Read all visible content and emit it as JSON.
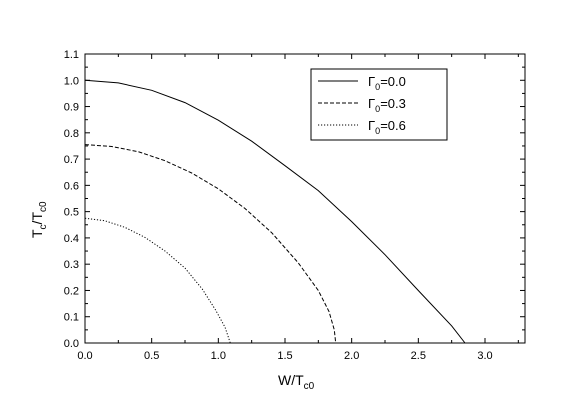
{
  "chart_data": {
    "type": "line",
    "xlabel": {
      "main": "W/T",
      "sub": "c0"
    },
    "ylabel": {
      "main": "T",
      "sub1": "c",
      "mid": "/T",
      "sub2": "c0"
    },
    "xlim": [
      0,
      3.3
    ],
    "ylim": [
      0,
      1.1
    ],
    "x_ticks": [
      "0.0",
      "0.5",
      "1.0",
      "1.5",
      "2.0",
      "2.5",
      "3.0"
    ],
    "y_ticks": [
      "0.0",
      "0.1",
      "0.2",
      "0.3",
      "0.4",
      "0.5",
      "0.6",
      "0.7",
      "0.8",
      "0.9",
      "1.0",
      "1.1"
    ],
    "grid": false,
    "legend_position": "top-right",
    "series": [
      {
        "name": {
          "symbol": "Γ",
          "sub": "0",
          "value": "=0.0"
        },
        "style": "solid",
        "points": [
          [
            0,
            1.0
          ],
          [
            0.25,
            0.99
          ],
          [
            0.5,
            0.962
          ],
          [
            0.75,
            0.915
          ],
          [
            1.0,
            0.848
          ],
          [
            1.25,
            0.768
          ],
          [
            1.5,
            0.675
          ],
          [
            1.75,
            0.58
          ],
          [
            2.0,
            0.462
          ],
          [
            2.25,
            0.336
          ],
          [
            2.5,
            0.2
          ],
          [
            2.75,
            0.065
          ],
          [
            2.85,
            0.0
          ]
        ]
      },
      {
        "name": {
          "symbol": "Γ",
          "sub": "0",
          "value": "=0.3"
        },
        "style": "dashed",
        "points": [
          [
            0,
            0.755
          ],
          [
            0.2,
            0.748
          ],
          [
            0.4,
            0.728
          ],
          [
            0.6,
            0.694
          ],
          [
            0.8,
            0.647
          ],
          [
            1.0,
            0.587
          ],
          [
            1.2,
            0.512
          ],
          [
            1.4,
            0.42
          ],
          [
            1.6,
            0.305
          ],
          [
            1.75,
            0.2
          ],
          [
            1.83,
            0.12
          ],
          [
            1.87,
            0.05
          ],
          [
            1.88,
            0.0
          ]
        ]
      },
      {
        "name": {
          "symbol": "Γ",
          "sub": "0",
          "value": "=0.6"
        },
        "style": "dotted",
        "points": [
          [
            0,
            0.475
          ],
          [
            0.15,
            0.465
          ],
          [
            0.3,
            0.44
          ],
          [
            0.45,
            0.402
          ],
          [
            0.6,
            0.35
          ],
          [
            0.75,
            0.285
          ],
          [
            0.88,
            0.205
          ],
          [
            0.98,
            0.125
          ],
          [
            1.05,
            0.06
          ],
          [
            1.08,
            0.015
          ],
          [
            1.09,
            0.0
          ]
        ]
      }
    ]
  }
}
